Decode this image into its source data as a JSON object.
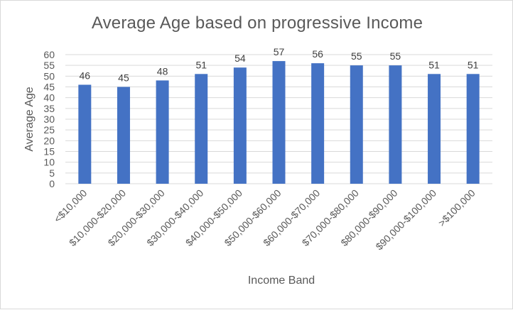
{
  "chart_data": {
    "type": "bar",
    "title": "Average Age based on progressive Income",
    "xlabel": "Income Band",
    "ylabel": "Average Age",
    "categories": [
      "<$10,000",
      "$10,000-$20,000",
      "$20,000-$30,000",
      "$30,000-$40,000",
      "$40,000-$50,000",
      "$50,000-$60,000",
      "$60,000-$70,000",
      "$70,000-$80,000",
      "$80,000-$90,000",
      "$90,000-$100,000",
      ">$100,000"
    ],
    "values": [
      46,
      45,
      48,
      51,
      54,
      57,
      56,
      55,
      55,
      51,
      51
    ],
    "ylim": [
      0,
      60
    ],
    "yticks": [
      0,
      5,
      10,
      15,
      20,
      25,
      30,
      35,
      40,
      45,
      50,
      55,
      60
    ],
    "grid": true,
    "legend": "none",
    "bar_color": "#4472C4",
    "grid_color": "#d9d9d9"
  }
}
